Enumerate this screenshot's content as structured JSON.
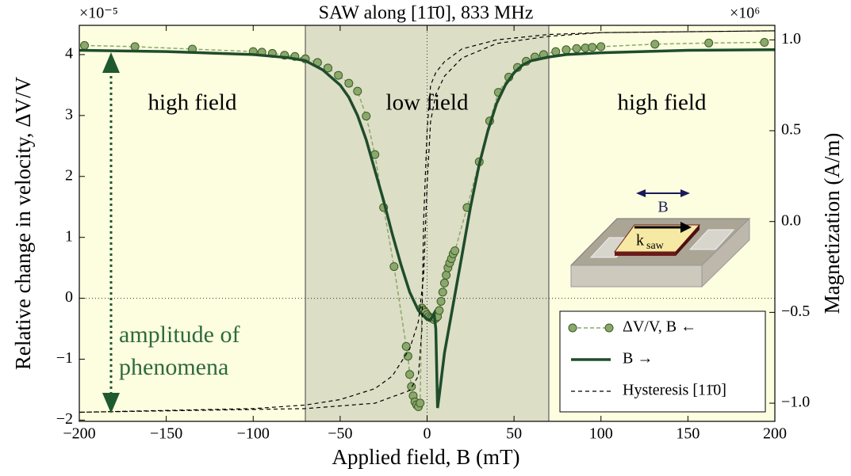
{
  "chart_data": {
    "type": "line",
    "title": "SAW along [11̄0], 833 MHz",
    "x_label": "Applied field, B (mT)",
    "y_label": "Relative change in velocity, ΔV/V",
    "y2_label": "Magnetization (A/m)",
    "y_multiplier": "×10⁻⁵",
    "y2_multiplier": "×10⁶",
    "xlim": [
      -200,
      200
    ],
    "ylim": [
      -2.02,
      4.48
    ],
    "y2lim": [
      -1.1,
      1.08
    ],
    "xticks": [
      {
        "value": -200,
        "label": "−200"
      },
      {
        "value": -150,
        "label": "−150"
      },
      {
        "value": -100,
        "label": "−100"
      },
      {
        "value": -50,
        "label": "−50"
      },
      0,
      50,
      100,
      150,
      200
    ],
    "yticks": [
      {
        "value": -2,
        "label": "−2"
      },
      {
        "value": -1,
        "label": "−1"
      },
      0,
      1,
      2,
      3,
      4
    ],
    "y2ticks": [
      {
        "value": -1,
        "label": "−1.0"
      },
      {
        "value": -0.5,
        "label": "−0.5"
      },
      {
        "value": 0,
        "label": "0.0"
      },
      0.5,
      {
        "value": 1,
        "label": "1.0"
      }
    ],
    "zero_lines": true,
    "regions": [
      {
        "label": "high field",
        "start": -200,
        "end": -70,
        "color": "#fdfde0"
      },
      {
        "label": "low field",
        "start": -70,
        "end": 70,
        "color": "#dddec6"
      },
      {
        "label": "high field",
        "start": 70,
        "end": 200,
        "color": "#fdfde0"
      }
    ],
    "annotations": [
      "amplitude of",
      "phenomena"
    ],
    "inset_labels": {
      "field": "B",
      "wave": "k",
      "wave_sub": "saw"
    },
    "legend": "lower right",
    "series": [
      {
        "name": "ΔV/V, B ←",
        "color": "#8aa86a",
        "linestyle": "dashed",
        "marker": "circle",
        "x": [
          -197,
          -168,
          -135,
          -100,
          -95,
          -89,
          -82,
          -76,
          -70,
          -63,
          -57,
          -51,
          -45,
          -40,
          -35,
          -30,
          -25,
          -19,
          -12,
          -11,
          -10,
          -9,
          -8,
          -7,
          -6,
          -5,
          -4,
          -3,
          -2,
          -1,
          0,
          1,
          2,
          3,
          4,
          5,
          6,
          7,
          8,
          9,
          10,
          11,
          12,
          13,
          14,
          15,
          16,
          23,
          30,
          36,
          41,
          47,
          52,
          57,
          62,
          67,
          74,
          80,
          86,
          91,
          95,
          100,
          131,
          162,
          194
        ],
        "values": [
          4.15,
          4.13,
          4.09,
          4.05,
          4.04,
          4.02,
          3.99,
          3.97,
          3.93,
          3.87,
          3.78,
          3.66,
          3.53,
          3.4,
          2.99,
          2.36,
          1.49,
          0.52,
          -0.79,
          -0.95,
          -1.25,
          -1.45,
          -1.6,
          -1.7,
          -1.75,
          -1.78,
          -1.72,
          -0.16,
          -0.2,
          -0.23,
          -0.27,
          -0.3,
          -0.32,
          -0.33,
          -0.35,
          -0.33,
          -0.3,
          -0.2,
          -0.05,
          0.1,
          0.25,
          0.38,
          0.5,
          0.58,
          0.65,
          0.73,
          0.78,
          1.49,
          2.24,
          2.91,
          3.38,
          3.63,
          3.79,
          3.89,
          3.96,
          4.0,
          4.05,
          4.08,
          4.1,
          4.11,
          4.12,
          4.13,
          4.17,
          4.19,
          4.2
        ]
      },
      {
        "name": "B →",
        "color": "#1e4d2b",
        "linestyle": "solid",
        "x": [
          -200,
          -150,
          -100,
          -80,
          -70,
          -60,
          -50,
          -45,
          -40,
          -35,
          -30,
          -25,
          -20,
          -15,
          -10,
          -5,
          0,
          2,
          4,
          5,
          6,
          7,
          10,
          15,
          20,
          25,
          30,
          35,
          40,
          45,
          50,
          55,
          60,
          70,
          80,
          100,
          150,
          200
        ],
        "values": [
          4.07,
          4.05,
          4.0,
          3.95,
          3.9,
          3.75,
          3.5,
          3.3,
          3.0,
          2.6,
          2.1,
          1.6,
          1.05,
          0.55,
          0.1,
          -0.2,
          -0.35,
          -0.35,
          -0.25,
          -0.5,
          -1.8,
          -1.6,
          -0.9,
          -0.1,
          0.7,
          1.5,
          2.2,
          2.75,
          3.2,
          3.5,
          3.7,
          3.83,
          3.9,
          3.96,
          4.0,
          4.03,
          4.07,
          4.08
        ]
      },
      {
        "name": "Hysteresis [11̄0]",
        "color": "#000000",
        "linestyle": "dashed",
        "axis": "y2",
        "x": [
          -200,
          -100,
          -70,
          -50,
          -30,
          -20,
          -10,
          -5,
          -2,
          0,
          2,
          5,
          10,
          20,
          40,
          70,
          100,
          200,
          200,
          100,
          70,
          40,
          20,
          10,
          5,
          2,
          0,
          -2,
          -3,
          -5,
          -10,
          -30,
          -70,
          -200
        ],
        "values": [
          -1.05,
          -1.03,
          -1.01,
          -0.98,
          -0.92,
          -0.85,
          -0.7,
          -0.55,
          -0.3,
          0.2,
          0.55,
          0.7,
          0.8,
          0.9,
          0.98,
          1.02,
          1.04,
          1.05,
          1.05,
          1.04,
          1.03,
          1.0,
          0.95,
          0.88,
          0.82,
          0.75,
          0.5,
          0,
          -0.6,
          -0.85,
          -0.93,
          -1.0,
          -1.03,
          -1.05
        ]
      }
    ]
  }
}
